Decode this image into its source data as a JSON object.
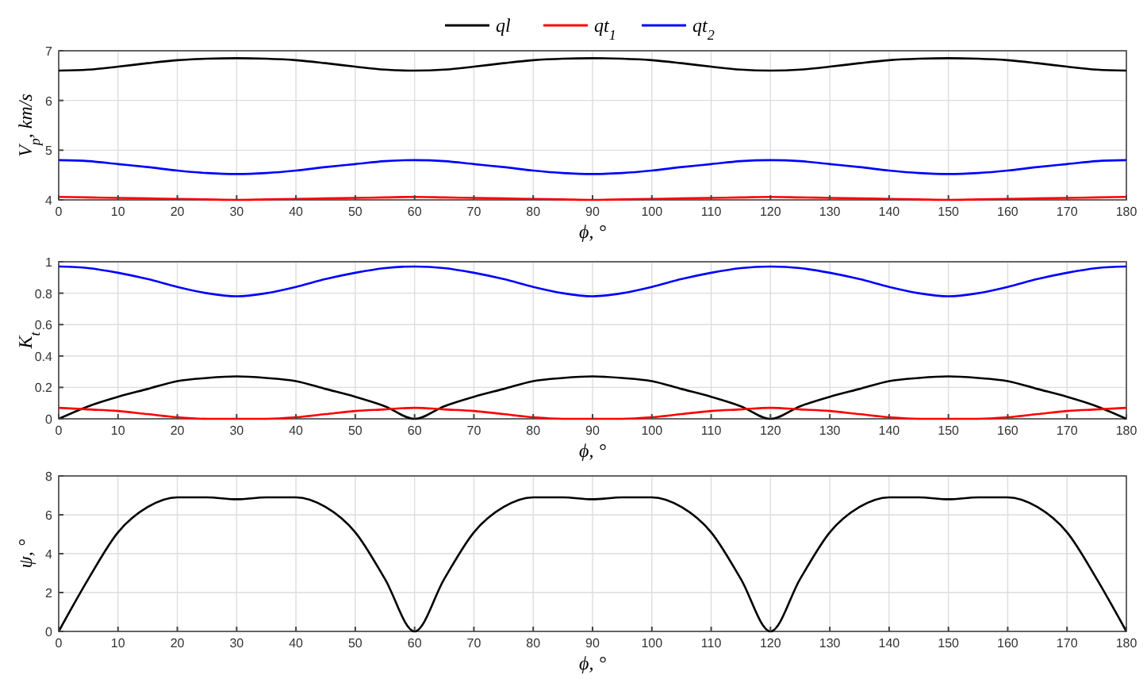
{
  "chart_data": [
    {
      "type": "line",
      "ylabel": "V$_{p}$, km/s",
      "xlabel": "ϕ, °",
      "x": [
        0,
        5,
        10,
        15,
        20,
        25,
        30,
        35,
        40,
        45,
        50,
        55,
        60,
        65,
        70,
        75,
        80,
        85,
        90,
        95,
        100,
        105,
        110,
        115,
        120,
        125,
        130,
        135,
        140,
        145,
        150,
        155,
        160,
        165,
        170,
        175,
        180
      ],
      "xlim": [
        0,
        180
      ],
      "xticks": [
        0,
        10,
        20,
        30,
        40,
        50,
        60,
        70,
        80,
        90,
        100,
        110,
        120,
        130,
        140,
        150,
        160,
        170,
        180
      ],
      "ylim": [
        4,
        7
      ],
      "yticks": [
        4,
        5,
        6,
        7
      ],
      "grid": true,
      "legend": "top",
      "line_style": "solid",
      "series": [
        {
          "name": "ql",
          "color": "#000000",
          "values": [
            6.6,
            6.62,
            6.68,
            6.75,
            6.81,
            6.84,
            6.85,
            6.84,
            6.81,
            6.75,
            6.68,
            6.62,
            6.6,
            6.62,
            6.68,
            6.75,
            6.81,
            6.84,
            6.85,
            6.84,
            6.81,
            6.75,
            6.68,
            6.62,
            6.6,
            6.62,
            6.68,
            6.75,
            6.81,
            6.84,
            6.85,
            6.84,
            6.81,
            6.75,
            6.68,
            6.62,
            6.6
          ]
        },
        {
          "name": "qt$_{1}$",
          "color": "#ff0000",
          "values": [
            4.06,
            4.05,
            4.04,
            4.03,
            4.02,
            4.01,
            4.0,
            4.01,
            4.02,
            4.03,
            4.04,
            4.05,
            4.06,
            4.05,
            4.04,
            4.03,
            4.02,
            4.01,
            4.0,
            4.01,
            4.02,
            4.03,
            4.04,
            4.05,
            4.06,
            4.05,
            4.04,
            4.03,
            4.02,
            4.01,
            4.0,
            4.01,
            4.02,
            4.03,
            4.04,
            4.05,
            4.06
          ]
        },
        {
          "name": "qt$_{2}$",
          "color": "#0000ff",
          "values": [
            4.8,
            4.78,
            4.72,
            4.66,
            4.59,
            4.54,
            4.52,
            4.54,
            4.59,
            4.66,
            4.72,
            4.78,
            4.8,
            4.78,
            4.72,
            4.66,
            4.59,
            4.54,
            4.52,
            4.54,
            4.59,
            4.66,
            4.72,
            4.78,
            4.8,
            4.78,
            4.72,
            4.66,
            4.59,
            4.54,
            4.52,
            4.54,
            4.59,
            4.66,
            4.72,
            4.78,
            4.8
          ]
        }
      ]
    },
    {
      "type": "line",
      "ylabel": "K$_{t}$",
      "xlabel": "ϕ, °",
      "x": [
        0,
        5,
        10,
        15,
        20,
        25,
        30,
        35,
        40,
        45,
        50,
        55,
        60,
        65,
        70,
        75,
        80,
        85,
        90,
        95,
        100,
        105,
        110,
        115,
        120,
        125,
        130,
        135,
        140,
        145,
        150,
        155,
        160,
        165,
        170,
        175,
        180
      ],
      "xlim": [
        0,
        180
      ],
      "xticks": [
        0,
        10,
        20,
        30,
        40,
        50,
        60,
        70,
        80,
        90,
        100,
        110,
        120,
        130,
        140,
        150,
        160,
        170,
        180
      ],
      "ylim": [
        0,
        1
      ],
      "yticks": [
        0,
        0.2,
        0.4,
        0.6,
        0.8,
        1
      ],
      "grid": true,
      "line_style": "solid",
      "series": [
        {
          "color": "#000000",
          "values": [
            0,
            0.08,
            0.14,
            0.19,
            0.24,
            0.26,
            0.27,
            0.26,
            0.24,
            0.19,
            0.14,
            0.08,
            0,
            0.08,
            0.14,
            0.19,
            0.24,
            0.26,
            0.27,
            0.26,
            0.24,
            0.19,
            0.14,
            0.08,
            0,
            0.08,
            0.14,
            0.19,
            0.24,
            0.26,
            0.27,
            0.26,
            0.24,
            0.19,
            0.14,
            0.08,
            0
          ]
        },
        {
          "color": "#ff0000",
          "values": [
            0.07,
            0.06,
            0.05,
            0.03,
            0.01,
            0,
            0,
            0,
            0.01,
            0.03,
            0.05,
            0.06,
            0.07,
            0.06,
            0.05,
            0.03,
            0.01,
            0,
            0,
            0,
            0.01,
            0.03,
            0.05,
            0.06,
            0.07,
            0.06,
            0.05,
            0.03,
            0.01,
            0,
            0,
            0,
            0.01,
            0.03,
            0.05,
            0.06,
            0.07
          ]
        },
        {
          "color": "#0000ff",
          "values": [
            0.97,
            0.96,
            0.93,
            0.89,
            0.84,
            0.8,
            0.78,
            0.8,
            0.84,
            0.89,
            0.93,
            0.96,
            0.97,
            0.96,
            0.93,
            0.89,
            0.84,
            0.8,
            0.78,
            0.8,
            0.84,
            0.89,
            0.93,
            0.96,
            0.97,
            0.96,
            0.93,
            0.89,
            0.84,
            0.8,
            0.78,
            0.8,
            0.84,
            0.89,
            0.93,
            0.96,
            0.97
          ]
        }
      ]
    },
    {
      "type": "line",
      "ylabel": "ψ, °",
      "xlabel": "ϕ, °",
      "x": [
        0,
        5,
        10,
        15,
        20,
        25,
        30,
        35,
        40,
        45,
        50,
        55,
        60,
        65,
        70,
        75,
        80,
        85,
        90,
        95,
        100,
        105,
        110,
        115,
        120,
        125,
        130,
        135,
        140,
        145,
        150,
        155,
        160,
        165,
        170,
        175,
        180
      ],
      "xlim": [
        0,
        180
      ],
      "xticks": [
        0,
        10,
        20,
        30,
        40,
        50,
        60,
        70,
        80,
        90,
        100,
        110,
        120,
        130,
        140,
        150,
        160,
        170,
        180
      ],
      "ylim": [
        0,
        8
      ],
      "yticks": [
        0,
        2,
        4,
        6,
        8
      ],
      "grid": true,
      "line_style": "solid",
      "series": [
        {
          "color": "#000000",
          "values": [
            0,
            2.7,
            5.1,
            6.4,
            6.9,
            6.9,
            6.8,
            6.9,
            6.9,
            6.4,
            5.1,
            2.7,
            0,
            2.7,
            5.1,
            6.4,
            6.9,
            6.9,
            6.8,
            6.9,
            6.9,
            6.4,
            5.1,
            2.7,
            0,
            2.7,
            5.1,
            6.4,
            6.9,
            6.9,
            6.8,
            6.9,
            6.9,
            6.4,
            5.1,
            2.7,
            0
          ]
        }
      ]
    }
  ]
}
